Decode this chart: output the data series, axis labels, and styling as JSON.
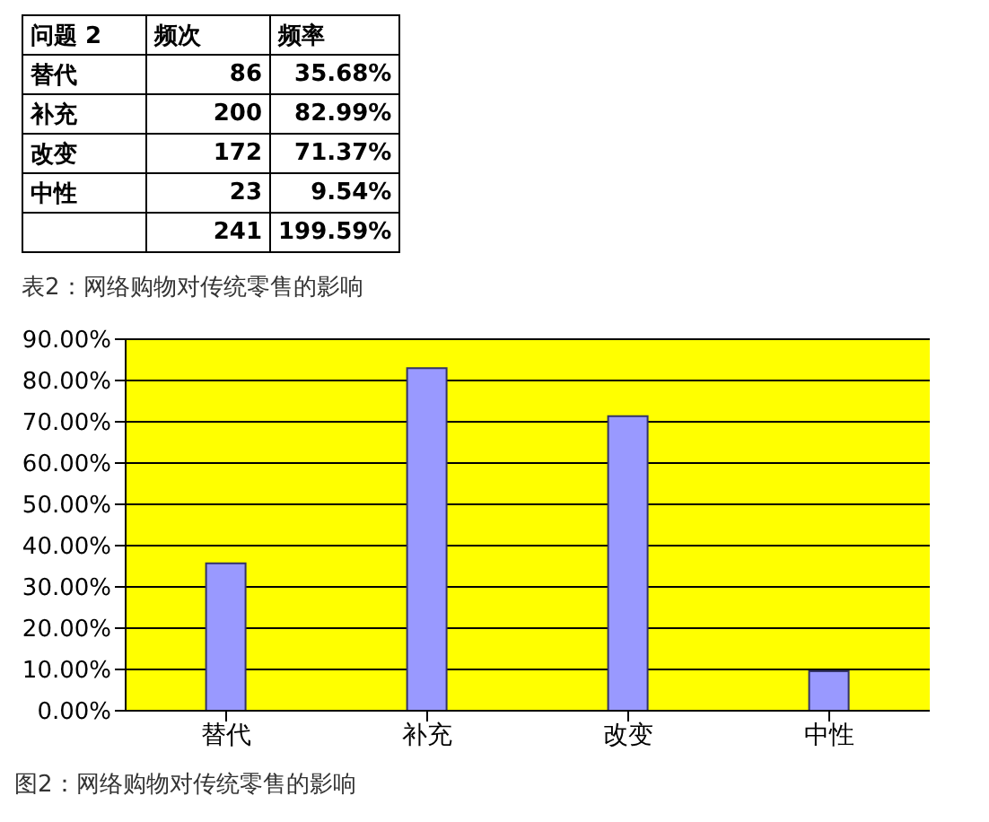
{
  "chart_data": [
    {
      "type": "other",
      "title": "表2：网络购物对传统零售的影响",
      "xlabel": "问题 2",
      "categories": [
        "替代",
        "补充",
        "改变",
        "中性"
      ],
      "data_labels": true,
      "series": [
        {
          "name": "频次",
          "values": [
            86,
            200,
            172,
            23
          ]
        },
        {
          "name": "频率",
          "values": [
            35.68,
            82.99,
            71.37,
            9.54
          ],
          "value_labels": [
            "35.68%",
            "82.99%",
            "71.37%",
            "9.54%"
          ]
        }
      ],
      "annotations": [
        "241",
        "199.59%"
      ]
    },
    {
      "type": "bar",
      "title": "图2：网络购物对传统零售的影响",
      "categories": [
        "替代",
        "补充",
        "改变",
        "中性"
      ],
      "values": [
        35.68,
        82.99,
        71.37,
        9.54
      ],
      "color": "#9999ff",
      "ylim": [
        0,
        90
      ],
      "yticks": [
        {
          "value": 0,
          "label": "0.00%"
        },
        {
          "value": 10,
          "label": "10.00%"
        },
        {
          "value": 20,
          "label": "20.00%"
        },
        {
          "value": 30,
          "label": "30.00%"
        },
        {
          "value": 40,
          "label": "40.00%"
        },
        {
          "value": 50,
          "label": "50.00%"
        },
        {
          "value": 60,
          "label": "60.00%"
        },
        {
          "value": 70,
          "label": "70.00%"
        },
        {
          "value": 80,
          "label": "80.00%"
        },
        {
          "value": 90,
          "label": "90.00%"
        }
      ],
      "grid": "y"
    }
  ]
}
